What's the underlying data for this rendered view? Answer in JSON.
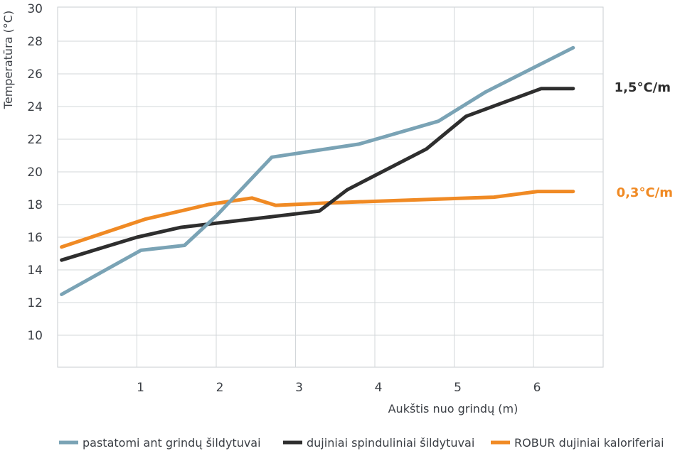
{
  "chart_data": {
    "type": "line",
    "title": "",
    "xlabel": "Aukštis nuo grindų (m)",
    "ylabel": "Temperatūra (°C)",
    "xlim": [
      0,
      6.95
    ],
    "ylim": [
      8,
      30
    ],
    "x_ticks": [
      "1",
      "2",
      "3",
      "4",
      "5",
      "6"
    ],
    "y_ticks": [
      "10",
      "12",
      "14",
      "16",
      "18",
      "20",
      "22",
      "24",
      "26",
      "28",
      "30"
    ],
    "grid": true,
    "legend_position": "bottom",
    "series": [
      {
        "name": "pastatomi ant grindų šildytuvai",
        "color": "#7aa3b5",
        "x": [
          0.05,
          1.05,
          1.6,
          2.0,
          2.7,
          3.8,
          4.8,
          5.4,
          6.5
        ],
        "values": [
          12.5,
          15.2,
          15.5,
          17.3,
          20.9,
          21.7,
          23.1,
          24.9,
          27.6
        ]
      },
      {
        "name": "dujiniai spinduliniai šildytuvai",
        "color": "#2e2e2e",
        "x": [
          0.05,
          1.0,
          1.55,
          2.25,
          3.3,
          3.65,
          4.65,
          5.15,
          6.1,
          6.5
        ],
        "values": [
          14.6,
          16.0,
          16.6,
          17.0,
          17.6,
          18.9,
          21.4,
          23.4,
          25.1,
          25.1
        ]
      },
      {
        "name": "ROBUR dujiniai kaloriferiai",
        "color": "#f08a24",
        "x": [
          0.05,
          1.1,
          1.9,
          2.45,
          2.75,
          3.4,
          4.3,
          5.5,
          6.05,
          6.5
        ],
        "values": [
          15.4,
          17.1,
          18.0,
          18.4,
          17.95,
          18.1,
          18.25,
          18.45,
          18.8,
          18.8
        ]
      }
    ],
    "annotations": [
      {
        "text": "1,5°C/m",
        "color": "#2e2e2e",
        "near_series": "dujiniai spinduliniai šildytuvai"
      },
      {
        "text": "0,3°C/m",
        "color": "#f08a24",
        "near_series": "ROBUR dujiniai kaloriferiai"
      }
    ]
  }
}
